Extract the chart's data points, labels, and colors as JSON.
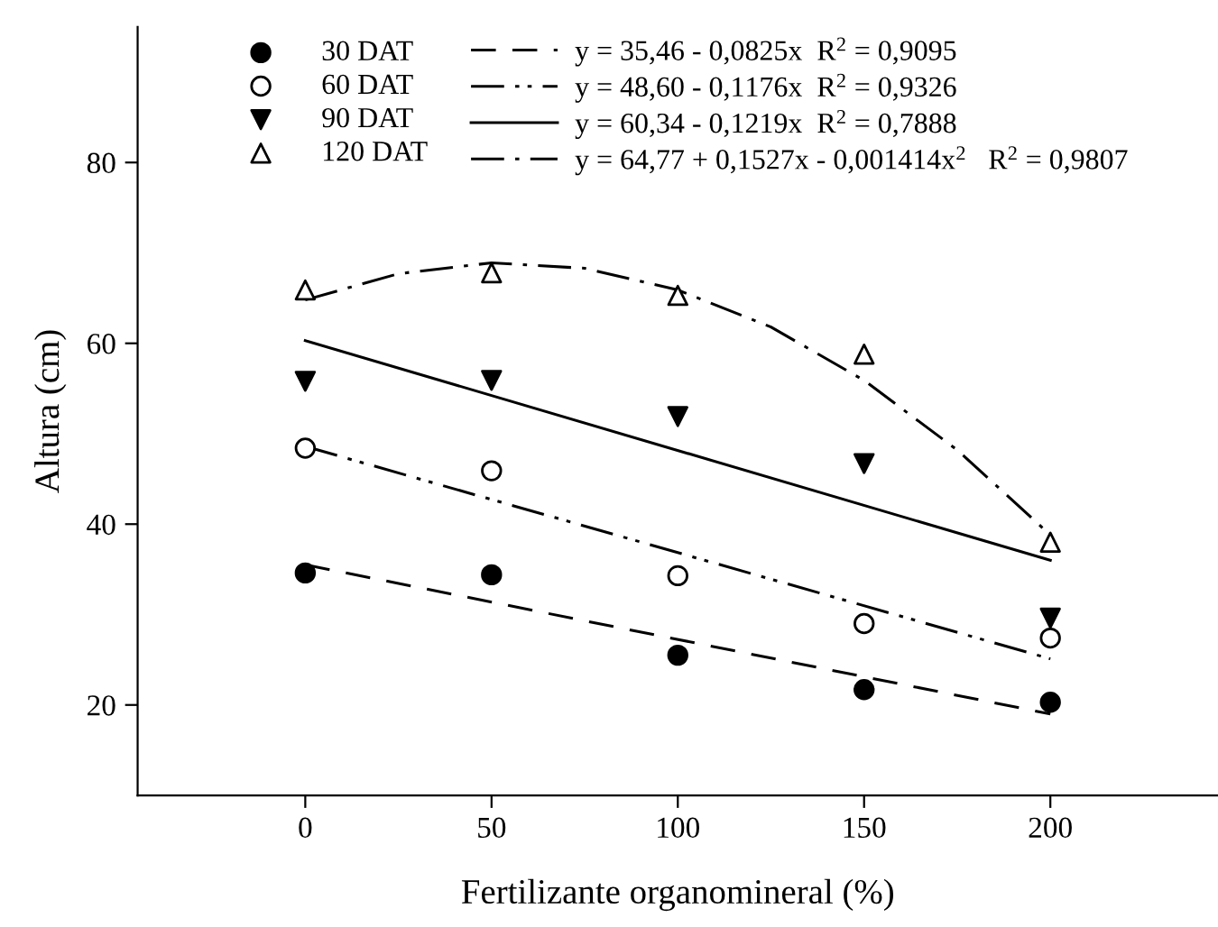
{
  "chart_data": {
    "type": "scatter",
    "xlabel": "Fertilizante organomineral (%)",
    "ylabel": "Altura (cm)",
    "xlim": [
      -45,
      245
    ],
    "ylim": [
      10,
      95
    ],
    "xticks": [
      0,
      50,
      100,
      150,
      200
    ],
    "yticks": [
      20,
      40,
      60,
      80
    ],
    "grid": false,
    "legend": "top left",
    "series": [
      {
        "name": "30 DAT",
        "marker": "circle",
        "color": "#000000",
        "x": [
          0,
          50,
          100,
          150,
          200
        ],
        "values": [
          34.6,
          34.4,
          25.5,
          21.7,
          20.3
        ]
      },
      {
        "name": "60 DAT",
        "marker": "circle",
        "color": "#ffffff",
        "x": [
          0,
          50,
          100,
          150,
          200
        ],
        "values": [
          48.4,
          45.9,
          34.3,
          29.0,
          27.4
        ]
      },
      {
        "name": "90 DAT",
        "marker": "triangle_down",
        "color": "#000000",
        "x": [
          0,
          50,
          100,
          150,
          200
        ],
        "values": [
          55.8,
          55.9,
          51.9,
          46.7,
          29.6
        ]
      },
      {
        "name": "120 DAT",
        "marker": "triangle",
        "color": "#ffffff",
        "x": [
          0,
          50,
          100,
          150,
          200
        ],
        "values": [
          65.9,
          67.8,
          65.3,
          58.8,
          38.0
        ]
      },
      {
        "name": "y = 35,46 - 0,0825x  R$^{2}$ = 0,9095",
        "type": "line",
        "line_style": "dashed",
        "color": "#000000",
        "x": [
          0,
          200
        ],
        "values": [
          35.5,
          19.0
        ]
      },
      {
        "name": "y = 48,60 - 0,1176x  R$^{2}$ = 0,9326",
        "type": "line",
        "line_style": "dashdotdotted",
        "color": "#000000",
        "x": [
          0,
          200
        ],
        "values": [
          48.6,
          25.1
        ]
      },
      {
        "name": "y = 60,34 - 0,1219x  R$^{2}$ = 0,7888",
        "type": "line",
        "line_style": "solid",
        "color": "#000000",
        "x": [
          0,
          200
        ],
        "values": [
          60.3,
          36.0
        ]
      },
      {
        "name": "y = 64,77 + 0,1527x - 0,001414x$^{2}$   R$^{2}$ = 0,9807",
        "type": "line",
        "line_style": "dashdot",
        "color": "#000000",
        "x": [
          0,
          25,
          50,
          75,
          100,
          125,
          150,
          175,
          200
        ],
        "values": [
          64.8,
          67.7,
          68.9,
          68.3,
          65.9,
          61.8,
          55.9,
          48.2,
          38.8
        ]
      }
    ]
  }
}
